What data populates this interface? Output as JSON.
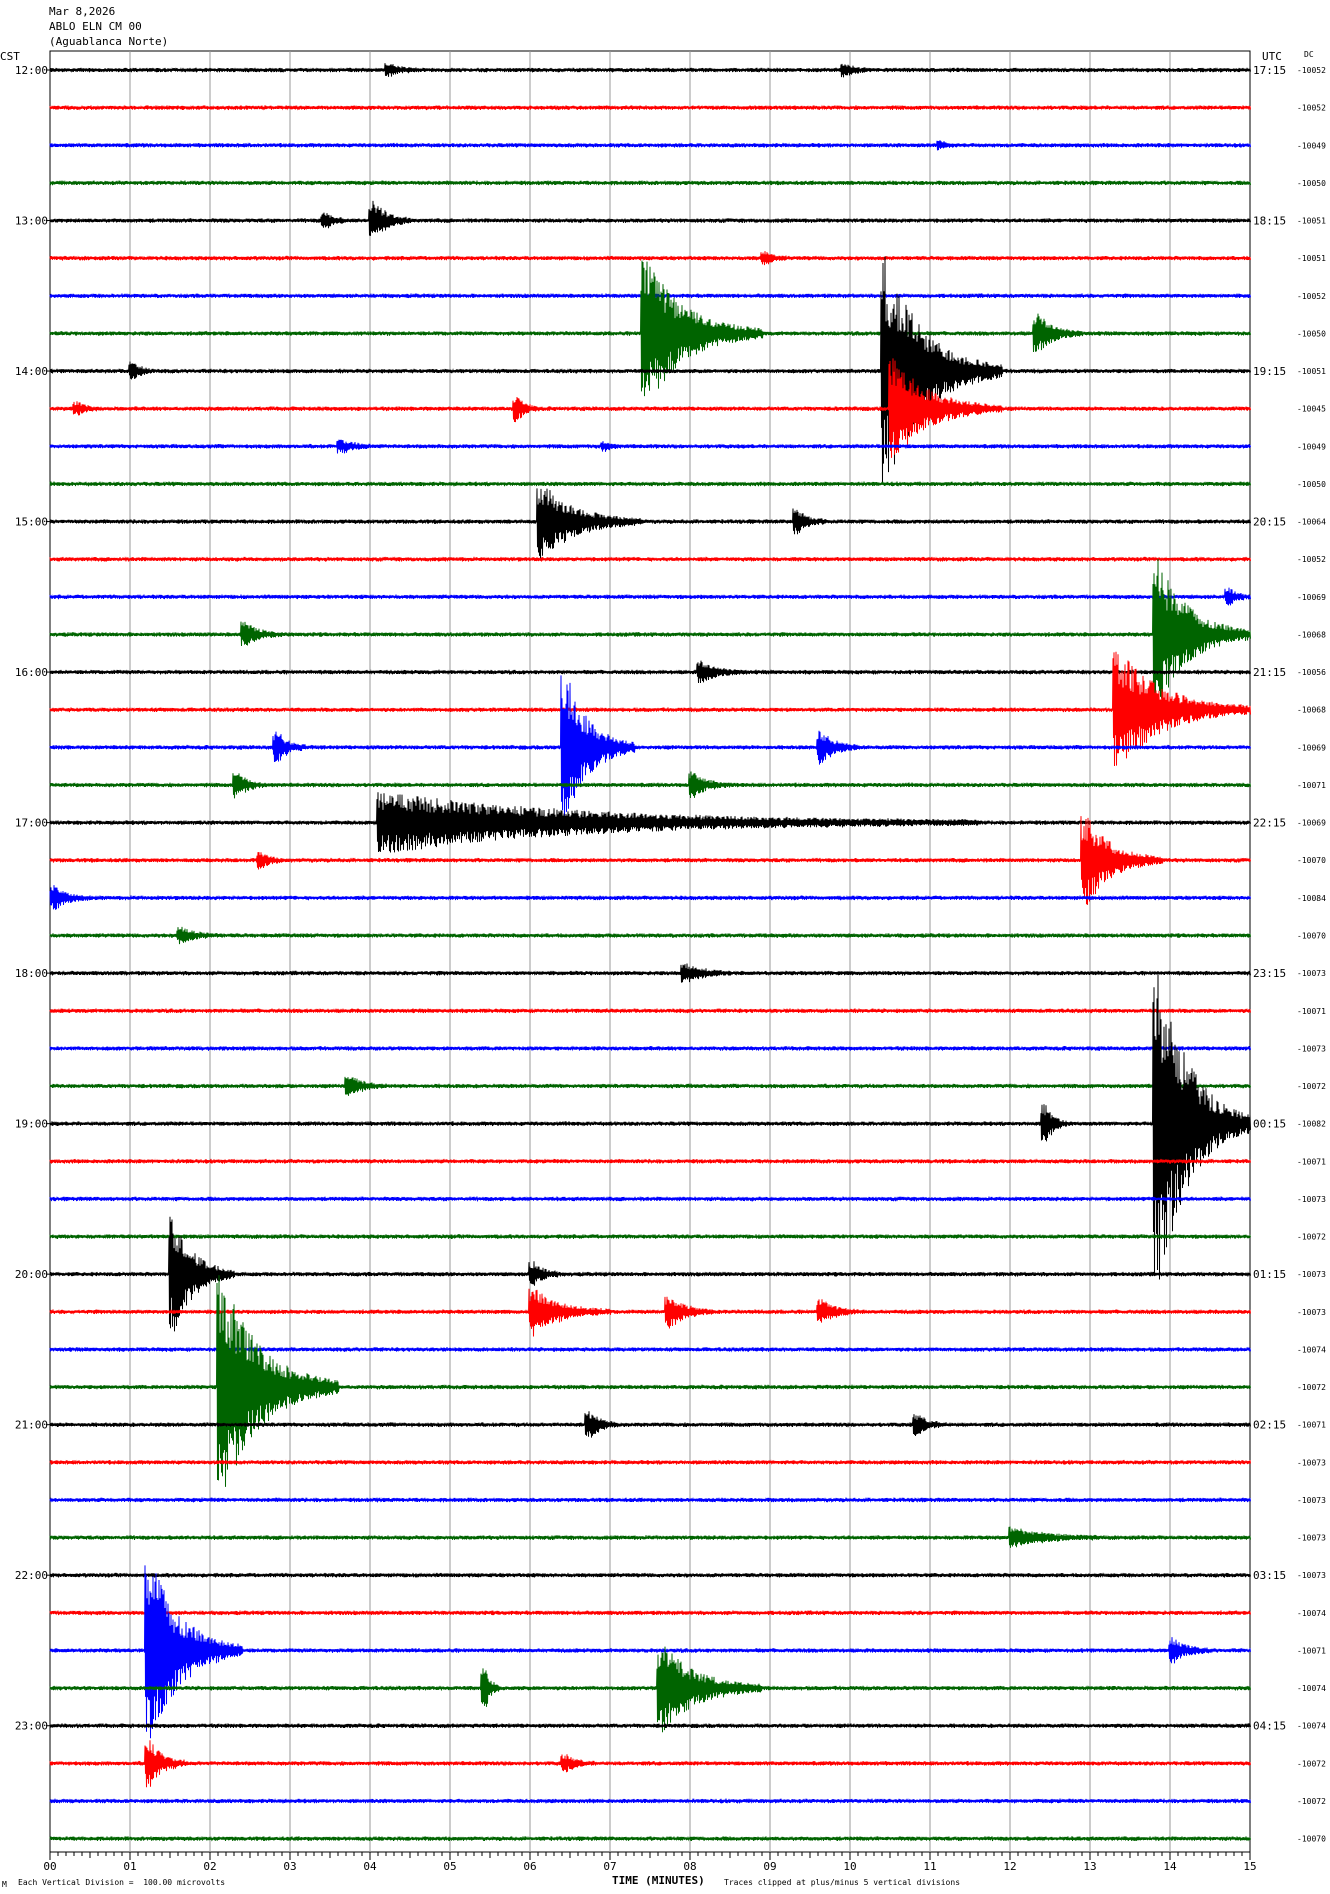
{
  "header": {
    "date": "Mar 8,2026",
    "station": "ABLO ELN CM 00",
    "location": "(Aguablanca Norte)"
  },
  "left_axis_label": "CST",
  "right_axis_label": "UTC",
  "dc_label": "DC",
  "footer": {
    "scale_note": "Each Vertical Division =  100.00 microvolts",
    "clip_note": "Traces clipped at plus/minus 5 vertical divisions",
    "corner_mark": "M"
  },
  "chart_data": {
    "type": "line",
    "title": "",
    "xlabel": "TIME (MINUTES)",
    "ylabel": "",
    "xlim": [
      0,
      15
    ],
    "x_ticks": [
      "00",
      "01",
      "02",
      "03",
      "04",
      "05",
      "06",
      "07",
      "08",
      "09",
      "10",
      "11",
      "12",
      "13",
      "14",
      "15"
    ],
    "trace_colors": [
      "#000000",
      "#ff0000",
      "#0000ff",
      "#006400"
    ],
    "left_hour_labels": [
      "12:00",
      "13:00",
      "14:00",
      "15:00",
      "16:00",
      "17:00",
      "18:00",
      "19:00",
      "20:00",
      "21:00",
      "22:00",
      "23:00"
    ],
    "right_hour_labels": [
      "17:15",
      "18:15",
      "19:15",
      "20:15",
      "21:15",
      "22:15",
      "23:15",
      "00:15",
      "01:15",
      "02:15",
      "03:15",
      "04:15"
    ],
    "dc_offsets": [
      "-10052",
      "-10052",
      "-10049",
      "-10050",
      "-10051",
      "-10051",
      "-10052",
      "-10050",
      "-10051",
      "-10045",
      "-10049",
      "-10050",
      "-10064",
      "-10052",
      "-10069",
      "-10068",
      "-10056",
      "-10068",
      "-10069",
      "-10071",
      "-10069",
      "-10070",
      "-10084",
      "-10070",
      "-10073",
      "-10071",
      "-10073",
      "-10072",
      "-10082",
      "-10071",
      "-10073",
      "-10072",
      "-10073",
      "-10073",
      "-10074",
      "-10072",
      "-10071",
      "-10073",
      "-10073",
      "-10073",
      "-10073",
      "-10074",
      "-10071",
      "-10074",
      "-10074",
      "-10072",
      "-10072",
      "-10070"
    ],
    "events": [
      {
        "trace": 0,
        "minute": 4.2,
        "amp": 0.15,
        "dur": 0.4
      },
      {
        "trace": 0,
        "minute": 9.9,
        "amp": 0.15,
        "dur": 0.3
      },
      {
        "trace": 2,
        "minute": 11.1,
        "amp": 0.1,
        "dur": 0.2
      },
      {
        "trace": 4,
        "minute": 3.4,
        "amp": 0.2,
        "dur": 0.3
      },
      {
        "trace": 4,
        "minute": 4.0,
        "amp": 0.5,
        "dur": 0.5
      },
      {
        "trace": 5,
        "minute": 8.9,
        "amp": 0.15,
        "dur": 0.3
      },
      {
        "trace": 7,
        "minute": 7.4,
        "amp": 2.0,
        "dur": 1.5
      },
      {
        "trace": 7,
        "minute": 12.3,
        "amp": 0.5,
        "dur": 0.6
      },
      {
        "trace": 8,
        "minute": 1.0,
        "amp": 0.2,
        "dur": 0.3
      },
      {
        "trace": 8,
        "minute": 10.4,
        "amp": 3.0,
        "dur": 1.5
      },
      {
        "trace": 9,
        "minute": 0.3,
        "amp": 0.15,
        "dur": 0.3
      },
      {
        "trace": 9,
        "minute": 5.8,
        "amp": 0.3,
        "dur": 0.3
      },
      {
        "trace": 9,
        "minute": 10.5,
        "amp": 1.3,
        "dur": 1.4
      },
      {
        "trace": 10,
        "minute": 3.6,
        "amp": 0.15,
        "dur": 0.5
      },
      {
        "trace": 10,
        "minute": 6.9,
        "amp": 0.1,
        "dur": 0.2
      },
      {
        "trace": 12,
        "minute": 6.1,
        "amp": 1.0,
        "dur": 1.3
      },
      {
        "trace": 12,
        "minute": 9.3,
        "amp": 0.3,
        "dur": 0.4
      },
      {
        "trace": 14,
        "minute": 14.7,
        "amp": 0.2,
        "dur": 0.3
      },
      {
        "trace": 15,
        "minute": 2.4,
        "amp": 0.3,
        "dur": 0.5
      },
      {
        "trace": 15,
        "minute": 13.8,
        "amp": 2.0,
        "dur": 1.2
      },
      {
        "trace": 16,
        "minute": 8.1,
        "amp": 0.25,
        "dur": 0.6
      },
      {
        "trace": 17,
        "minute": 13.3,
        "amp": 1.6,
        "dur": 1.7
      },
      {
        "trace": 18,
        "minute": 6.4,
        "amp": 2.0,
        "dur": 0.9
      },
      {
        "trace": 18,
        "minute": 2.8,
        "amp": 0.4,
        "dur": 0.4
      },
      {
        "trace": 18,
        "minute": 9.6,
        "amp": 0.4,
        "dur": 0.5
      },
      {
        "trace": 19,
        "minute": 2.3,
        "amp": 0.3,
        "dur": 0.4
      },
      {
        "trace": 19,
        "minute": 8.0,
        "amp": 0.3,
        "dur": 0.5
      },
      {
        "trace": 20,
        "minute": 4.1,
        "amp": 0.8,
        "dur": 7.5
      },
      {
        "trace": 21,
        "minute": 2.6,
        "amp": 0.2,
        "dur": 0.3
      },
      {
        "trace": 21,
        "minute": 12.9,
        "amp": 1.2,
        "dur": 1.0
      },
      {
        "trace": 22,
        "minute": 0.0,
        "amp": 0.3,
        "dur": 0.5
      },
      {
        "trace": 23,
        "minute": 1.6,
        "amp": 0.2,
        "dur": 0.5
      },
      {
        "trace": 24,
        "minute": 7.9,
        "amp": 0.25,
        "dur": 0.6
      },
      {
        "trace": 27,
        "minute": 3.7,
        "amp": 0.25,
        "dur": 0.5
      },
      {
        "trace": 28,
        "minute": 12.4,
        "amp": 0.5,
        "dur": 0.3
      },
      {
        "trace": 28,
        "minute": 13.8,
        "amp": 4.5,
        "dur": 1.2
      },
      {
        "trace": 32,
        "minute": 1.5,
        "amp": 1.5,
        "dur": 0.8
      },
      {
        "trace": 32,
        "minute": 6.0,
        "amp": 0.3,
        "dur": 0.4
      },
      {
        "trace": 33,
        "minute": 6.0,
        "amp": 0.6,
        "dur": 1.0
      },
      {
        "trace": 33,
        "minute": 7.7,
        "amp": 0.4,
        "dur": 0.6
      },
      {
        "trace": 33,
        "minute": 9.6,
        "amp": 0.3,
        "dur": 0.5
      },
      {
        "trace": 35,
        "minute": 2.1,
        "amp": 3.0,
        "dur": 1.5
      },
      {
        "trace": 36,
        "minute": 6.7,
        "amp": 0.35,
        "dur": 0.4
      },
      {
        "trace": 36,
        "minute": 10.8,
        "amp": 0.25,
        "dur": 0.4
      },
      {
        "trace": 39,
        "minute": 12.0,
        "amp": 0.25,
        "dur": 1.1
      },
      {
        "trace": 42,
        "minute": 1.2,
        "amp": 2.5,
        "dur": 1.2
      },
      {
        "trace": 42,
        "minute": 14.0,
        "amp": 0.3,
        "dur": 0.5
      },
      {
        "trace": 43,
        "minute": 5.4,
        "amp": 0.5,
        "dur": 0.2
      },
      {
        "trace": 43,
        "minute": 7.6,
        "amp": 1.2,
        "dur": 1.3
      },
      {
        "trace": 45,
        "minute": 1.2,
        "amp": 0.6,
        "dur": 0.5
      },
      {
        "trace": 45,
        "minute": 6.4,
        "amp": 0.2,
        "dur": 0.4
      }
    ]
  }
}
